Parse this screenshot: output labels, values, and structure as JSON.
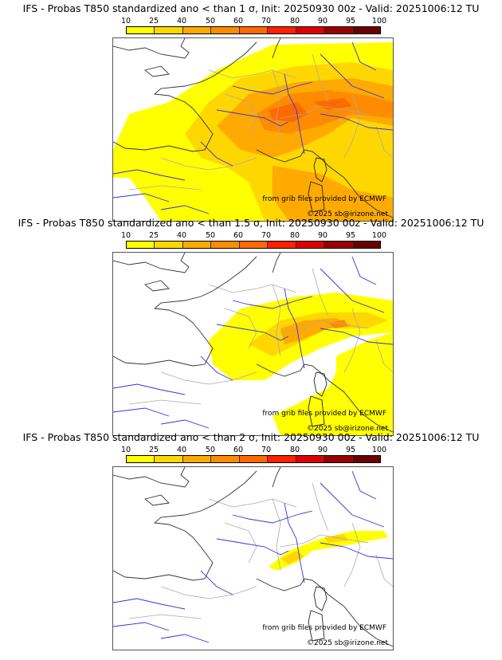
{
  "colorbar": {
    "ticks": [
      "10",
      "25",
      "40",
      "50",
      "60",
      "70",
      "80",
      "90",
      "95",
      "100"
    ],
    "colors": [
      "#ffff00",
      "#ffd700",
      "#ffaa00",
      "#ff8c00",
      "#ff6a00",
      "#ff2000",
      "#dd0000",
      "#990000",
      "#6b0000"
    ]
  },
  "panels": [
    {
      "title": "IFS - Probas T850  standardized ano < than 1 σ, Init: 20250930 00z - Valid: 20251006:12 TU",
      "credit_source": "from grib files provided by ECMWF",
      "credit_copyright": "©2025 sb@irizone.net",
      "coverage_level": "high"
    },
    {
      "title": "IFS - Probas T850  standardized ano < than 1.5 σ, Init: 20250930 00z - Valid: 20251006:12 TU",
      "credit_source": "from grib files provided by ECMWF",
      "credit_copyright": "©2025 sb@irizone.net",
      "coverage_level": "medium"
    },
    {
      "title": "IFS - Probas T850  standardized ano < than 2 σ, Init: 20250930 00z - Valid: 20251006:12 TU",
      "credit_source": "from grib files provided by ECMWF",
      "credit_copyright": "©2025 sb@irizone.net",
      "coverage_level": "low"
    }
  ]
}
